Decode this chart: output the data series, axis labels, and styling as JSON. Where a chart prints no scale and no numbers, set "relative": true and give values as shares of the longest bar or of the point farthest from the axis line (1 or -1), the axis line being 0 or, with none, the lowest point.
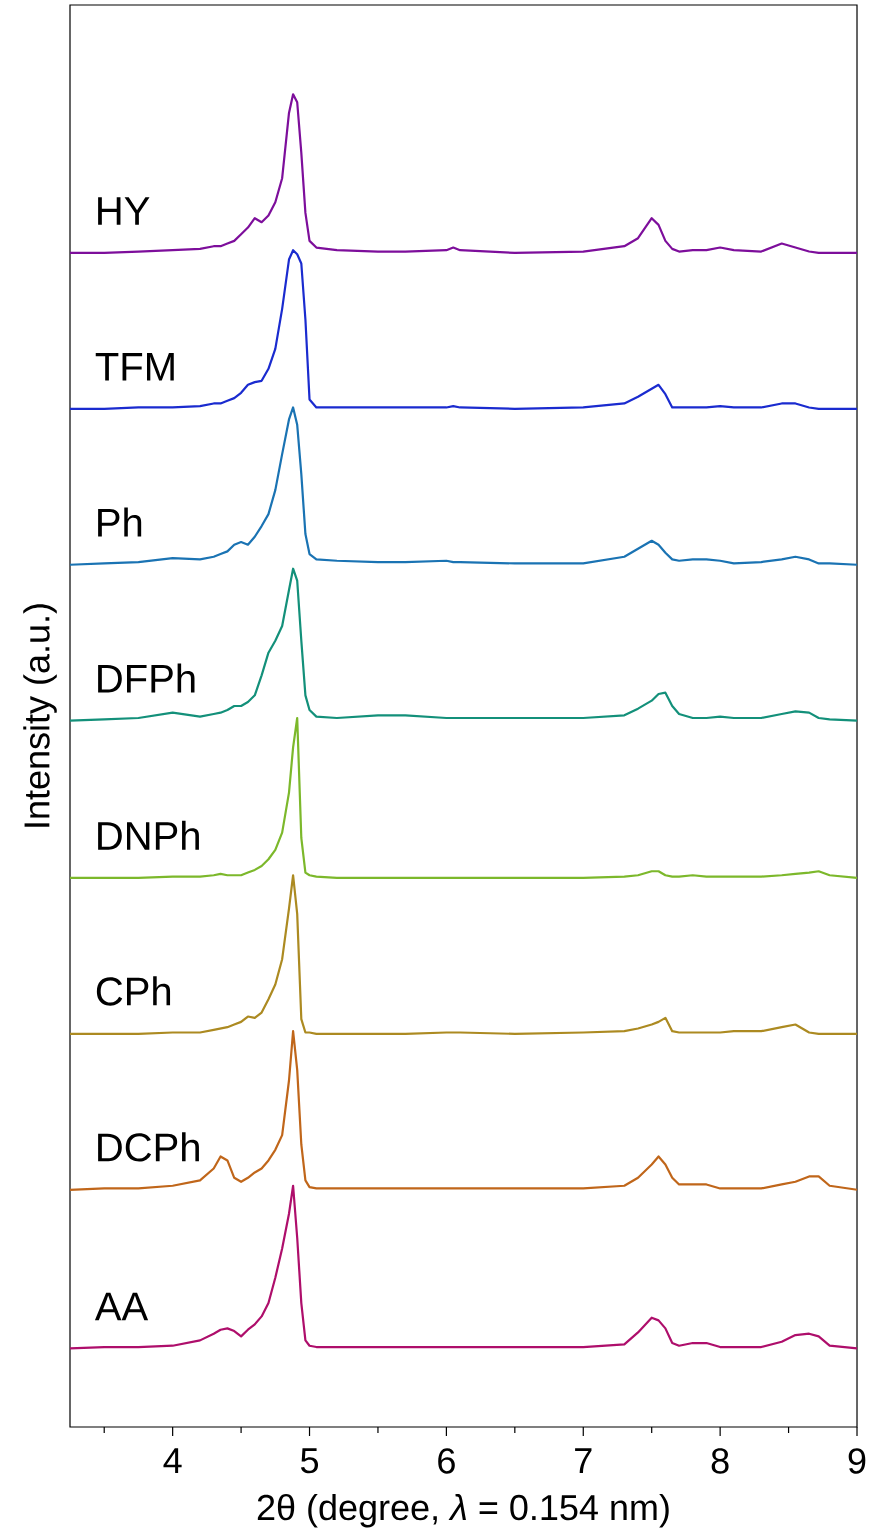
{
  "chart_data": {
    "type": "line",
    "relative": true,
    "xlabel": "2θ (degree, *λ* = 0.154 nm)",
    "ylabel": "Intensity (a.u.)",
    "xlim": [
      3.25,
      9
    ],
    "xticks": [
      {
        "value": 3.5,
        "label": null
      },
      4,
      {
        "value": 4.5,
        "label": null
      },
      5,
      {
        "value": 5.5,
        "label": null
      },
      6,
      {
        "value": 6.5,
        "label": null
      },
      7,
      {
        "value": 7.5,
        "label": null
      },
      8,
      {
        "value": 8.5,
        "label": null
      },
      9
    ],
    "x": [
      3.25,
      3.5,
      3.75,
      4.0,
      4.2,
      4.3,
      4.35,
      4.4,
      4.45,
      4.5,
      4.55,
      4.6,
      4.65,
      4.7,
      4.75,
      4.8,
      4.85,
      4.88,
      4.91,
      4.94,
      4.97,
      5.0,
      5.05,
      5.2,
      5.5,
      5.7,
      6.0,
      6.05,
      6.1,
      6.5,
      7.0,
      7.3,
      7.4,
      7.5,
      7.55,
      7.6,
      7.65,
      7.7,
      7.8,
      7.9,
      8.0,
      8.1,
      8.3,
      8.45,
      8.55,
      8.65,
      8.72,
      8.8,
      9.0
    ],
    "series": [
      {
        "name": "HY",
        "color": "#7d0e9b",
        "values": [
          0.881,
          0.881,
          0.882,
          0.883,
          0.884,
          0.886,
          0.886,
          0.888,
          0.89,
          0.895,
          0.9,
          0.907,
          0.904,
          0.909,
          0.919,
          0.937,
          0.986,
          1.0,
          0.994,
          0.956,
          0.911,
          0.89,
          0.885,
          0.883,
          0.882,
          0.882,
          0.883,
          0.885,
          0.883,
          0.881,
          0.882,
          0.886,
          0.892,
          0.907,
          0.902,
          0.89,
          0.884,
          0.882,
          0.883,
          0.883,
          0.885,
          0.883,
          0.882,
          0.888,
          0.885,
          0.882,
          0.881,
          0.881,
          0.881
        ]
      },
      {
        "name": "TFM",
        "color": "#1a2bcf",
        "values": [
          0.764,
          0.764,
          0.765,
          0.765,
          0.766,
          0.768,
          0.768,
          0.77,
          0.772,
          0.776,
          0.782,
          0.784,
          0.785,
          0.794,
          0.809,
          0.839,
          0.876,
          0.883,
          0.88,
          0.873,
          0.831,
          0.771,
          0.765,
          0.765,
          0.765,
          0.765,
          0.765,
          0.766,
          0.765,
          0.764,
          0.765,
          0.768,
          0.773,
          0.779,
          0.782,
          0.775,
          0.765,
          0.765,
          0.765,
          0.765,
          0.766,
          0.765,
          0.765,
          0.768,
          0.768,
          0.765,
          0.764,
          0.764,
          0.764
        ]
      },
      {
        "name": "Ph",
        "color": "#1a73b3",
        "values": [
          0.647,
          0.648,
          0.649,
          0.652,
          0.651,
          0.653,
          0.655,
          0.657,
          0.662,
          0.664,
          0.662,
          0.668,
          0.676,
          0.685,
          0.703,
          0.73,
          0.756,
          0.765,
          0.752,
          0.715,
          0.67,
          0.655,
          0.651,
          0.65,
          0.649,
          0.649,
          0.65,
          0.649,
          0.649,
          0.648,
          0.648,
          0.653,
          0.659,
          0.665,
          0.662,
          0.656,
          0.651,
          0.65,
          0.651,
          0.651,
          0.65,
          0.648,
          0.649,
          0.651,
          0.653,
          0.651,
          0.648,
          0.648,
          0.647
        ]
      },
      {
        "name": "DFPh",
        "color": "#13907a",
        "values": [
          0.53,
          0.531,
          0.532,
          0.536,
          0.533,
          0.535,
          0.536,
          0.538,
          0.541,
          0.541,
          0.544,
          0.549,
          0.564,
          0.581,
          0.59,
          0.601,
          0.628,
          0.644,
          0.635,
          0.59,
          0.549,
          0.538,
          0.533,
          0.532,
          0.534,
          0.534,
          0.532,
          0.532,
          0.532,
          0.532,
          0.532,
          0.534,
          0.539,
          0.545,
          0.55,
          0.551,
          0.541,
          0.535,
          0.532,
          0.532,
          0.533,
          0.532,
          0.532,
          0.535,
          0.537,
          0.536,
          0.532,
          0.531,
          0.53
        ]
      },
      {
        "name": "DNPh",
        "color": "#7cb82b",
        "values": [
          0.412,
          0.412,
          0.412,
          0.413,
          0.413,
          0.414,
          0.415,
          0.414,
          0.414,
          0.414,
          0.416,
          0.418,
          0.421,
          0.426,
          0.433,
          0.446,
          0.476,
          0.51,
          0.532,
          0.442,
          0.416,
          0.414,
          0.413,
          0.412,
          0.412,
          0.412,
          0.412,
          0.412,
          0.412,
          0.412,
          0.412,
          0.413,
          0.414,
          0.417,
          0.417,
          0.414,
          0.413,
          0.413,
          0.414,
          0.413,
          0.413,
          0.413,
          0.413,
          0.414,
          0.415,
          0.416,
          0.417,
          0.414,
          0.412
        ]
      },
      {
        "name": "CPh",
        "color": "#ac8a21",
        "values": [
          0.295,
          0.295,
          0.295,
          0.296,
          0.296,
          0.298,
          0.299,
          0.3,
          0.302,
          0.304,
          0.308,
          0.307,
          0.311,
          0.321,
          0.332,
          0.351,
          0.389,
          0.414,
          0.385,
          0.306,
          0.296,
          0.296,
          0.295,
          0.295,
          0.295,
          0.295,
          0.296,
          0.296,
          0.296,
          0.295,
          0.296,
          0.297,
          0.299,
          0.302,
          0.304,
          0.307,
          0.297,
          0.296,
          0.296,
          0.296,
          0.296,
          0.297,
          0.297,
          0.3,
          0.302,
          0.296,
          0.295,
          0.295,
          0.295
        ]
      },
      {
        "name": "DCPh",
        "color": "#c0661a",
        "values": [
          0.178,
          0.179,
          0.179,
          0.181,
          0.185,
          0.194,
          0.203,
          0.2,
          0.187,
          0.184,
          0.187,
          0.191,
          0.194,
          0.2,
          0.208,
          0.219,
          0.26,
          0.297,
          0.268,
          0.212,
          0.185,
          0.18,
          0.179,
          0.179,
          0.179,
          0.179,
          0.179,
          0.179,
          0.179,
          0.179,
          0.179,
          0.181,
          0.187,
          0.197,
          0.203,
          0.197,
          0.187,
          0.182,
          0.182,
          0.182,
          0.179,
          0.179,
          0.179,
          0.182,
          0.184,
          0.188,
          0.188,
          0.181,
          0.178
        ]
      },
      {
        "name": "AA",
        "color": "#ae0e6b",
        "values": [
          0.059,
          0.06,
          0.06,
          0.061,
          0.065,
          0.07,
          0.073,
          0.074,
          0.072,
          0.068,
          0.073,
          0.077,
          0.083,
          0.093,
          0.112,
          0.134,
          0.16,
          0.181,
          0.142,
          0.093,
          0.065,
          0.061,
          0.06,
          0.06,
          0.06,
          0.06,
          0.06,
          0.06,
          0.06,
          0.06,
          0.06,
          0.062,
          0.071,
          0.082,
          0.08,
          0.074,
          0.063,
          0.061,
          0.063,
          0.063,
          0.06,
          0.06,
          0.06,
          0.064,
          0.069,
          0.07,
          0.068,
          0.061,
          0.059
        ]
      }
    ]
  }
}
